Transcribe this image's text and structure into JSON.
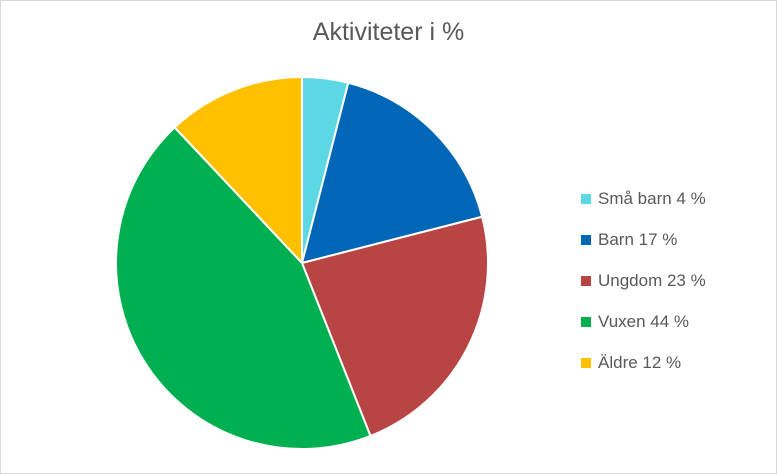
{
  "chart_data": {
    "type": "pie",
    "title": "Aktiviteter i %",
    "categories": [
      "Små barn",
      "Barn",
      "Ungdom",
      "Vuxen",
      "Äldre"
    ],
    "values": [
      4,
      17,
      23,
      44,
      12
    ],
    "legend_labels": [
      "Små barn 4 %",
      "Barn 17 %",
      "Ungdom 23 %",
      "Vuxen 44 %",
      "Äldre 12 %"
    ],
    "colors": [
      "#5bd8e3",
      "#0066b7",
      "#b94444",
      "#00b050",
      "#ffc000"
    ],
    "legend_position": "right"
  }
}
